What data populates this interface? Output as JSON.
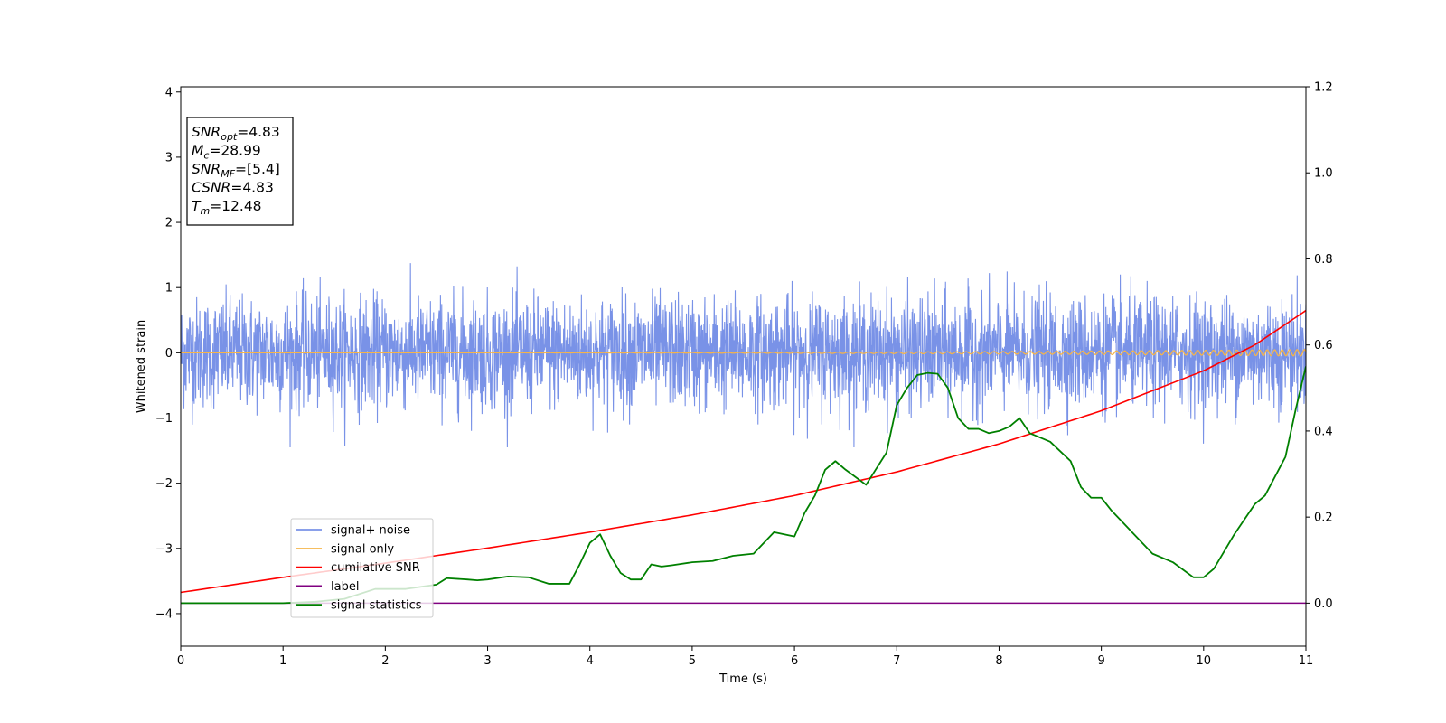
{
  "chart_data": {
    "type": "line",
    "xlabel": "Time (s)",
    "ylabel": "Whitened strain",
    "xlim": [
      0,
      11
    ],
    "ylim_left": [
      -4.5,
      4.08
    ],
    "ylim_right": [
      -0.1,
      1.2
    ],
    "x_ticks": [
      "0",
      "1",
      "2",
      "3",
      "4",
      "5",
      "6",
      "7",
      "8",
      "9",
      "10",
      "11"
    ],
    "y_ticks_left": [
      "−4",
      "−3",
      "−2",
      "−1",
      "0",
      "1",
      "2",
      "3",
      "4"
    ],
    "y_ticks_right": [
      "0.0",
      "0.2",
      "0.4",
      "0.6",
      "0.8",
      "1.0",
      "1.2"
    ],
    "legend_position": "lower-left",
    "legend": [
      "signal+ noise",
      "signal only",
      "cumilative SNR",
      "label",
      "signal statistics"
    ],
    "stats": {
      "snr_opt": {
        "sym": "SNR",
        "sub": "opt",
        "value": "=4.83"
      },
      "mc": {
        "sym": "M",
        "sub": "c",
        "value": "=28.99"
      },
      "snr_mf": {
        "sym": "SNR",
        "sub": "MF",
        "value": "=[5.4]"
      },
      "csnr": {
        "sym": "CSNR",
        "value": "=4.83"
      },
      "tm": {
        "sym": "T",
        "sub": "m",
        "value": "=12.48"
      }
    },
    "series": [
      {
        "name": "signal+ noise",
        "axis": "left",
        "color": "#6a86e4",
        "noise_amplitude_approx": 1.45,
        "spans_x": [
          0,
          11
        ]
      },
      {
        "name": "signal only",
        "axis": "left",
        "color": "#f5b44a",
        "oscillation_amplitude_end": 0.05
      },
      {
        "name": "cumilative SNR",
        "axis": "right",
        "color": "#ff0000",
        "x": [
          0,
          1,
          2,
          3,
          4,
          5,
          6,
          7,
          8,
          9,
          10,
          10.5,
          11
        ],
        "y": [
          0.025,
          0.06,
          0.093,
          0.128,
          0.165,
          0.205,
          0.25,
          0.305,
          0.37,
          0.447,
          0.54,
          0.6,
          0.68
        ]
      },
      {
        "name": "label",
        "axis": "right",
        "color": "#800080",
        "x": [
          0,
          11
        ],
        "y": [
          0.0,
          0.0
        ]
      },
      {
        "name": "signal statistics",
        "axis": "right",
        "color": "#008000",
        "x": [
          0,
          0.2,
          0.5,
          1.0,
          1.3,
          1.6,
          1.9,
          2.2,
          2.5,
          2.6,
          2.8,
          2.9,
          3.0,
          3.2,
          3.4,
          3.6,
          3.7,
          3.8,
          3.9,
          4.0,
          4.1,
          4.2,
          4.3,
          4.4,
          4.5,
          4.6,
          4.7,
          4.8,
          5.0,
          5.2,
          5.4,
          5.6,
          5.7,
          5.8,
          6.0,
          6.1,
          6.2,
          6.3,
          6.4,
          6.5,
          6.7,
          6.9,
          7.0,
          7.1,
          7.2,
          7.3,
          7.4,
          7.5,
          7.6,
          7.7,
          7.8,
          7.9,
          8.0,
          8.1,
          8.2,
          8.3,
          8.5,
          8.7,
          8.8,
          8.9,
          9.0,
          9.1,
          9.2,
          9.4,
          9.5,
          9.7,
          9.9,
          10.0,
          10.1,
          10.3,
          10.5,
          10.6,
          10.8,
          10.9,
          11.0
        ],
        "y": [
          0.0,
          0.0,
          0.0,
          0.0,
          0.003,
          0.01,
          0.033,
          0.033,
          0.043,
          0.058,
          0.055,
          0.053,
          0.055,
          0.062,
          0.06,
          0.045,
          0.045,
          0.045,
          0.09,
          0.14,
          0.16,
          0.11,
          0.07,
          0.055,
          0.055,
          0.09,
          0.085,
          0.088,
          0.095,
          0.098,
          0.11,
          0.115,
          0.14,
          0.165,
          0.155,
          0.21,
          0.25,
          0.31,
          0.33,
          0.31,
          0.275,
          0.35,
          0.46,
          0.5,
          0.53,
          0.535,
          0.533,
          0.5,
          0.43,
          0.405,
          0.405,
          0.395,
          0.4,
          0.41,
          0.43,
          0.395,
          0.375,
          0.33,
          0.27,
          0.245,
          0.245,
          0.215,
          0.19,
          0.14,
          0.115,
          0.095,
          0.06,
          0.06,
          0.08,
          0.16,
          0.23,
          0.25,
          0.34,
          0.45,
          0.55
        ]
      }
    ]
  }
}
